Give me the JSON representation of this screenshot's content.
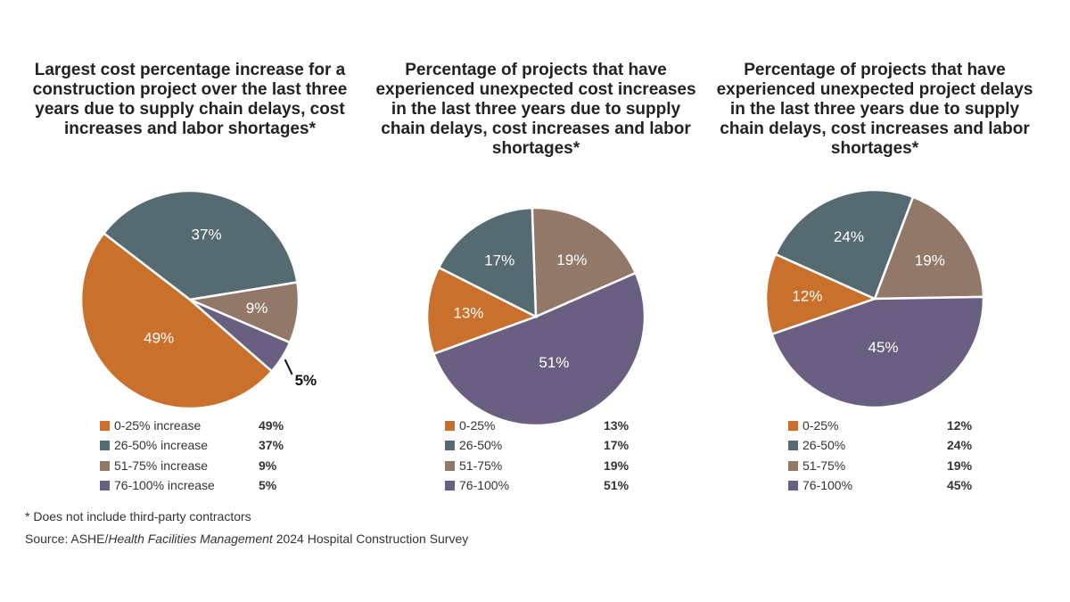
{
  "colors": {
    "0-25": "#C8702C",
    "26-50": "#566A72",
    "51-75": "#917869",
    "76-100": "#6A5F80"
  },
  "chart_data": [
    {
      "type": "pie",
      "title": "Largest cost percentage increase for a construction project over the last three years due to supply chain delays, cost increases and labor shortages*",
      "categories": [
        "0-25% increase",
        "26-50% increase",
        "51-75% increase",
        "76-100% increase"
      ],
      "values": [
        49,
        37,
        9,
        5
      ],
      "data_labels": [
        "49%",
        "37%",
        "9%",
        "5%"
      ],
      "legend": "bottom"
    },
    {
      "type": "pie",
      "title": "Percentage of projects that have experienced unexpected cost increases in the last three years due to supply chain delays, cost increases and labor shortages*",
      "categories": [
        "0-25%",
        "26-50%",
        "51-75%",
        "76-100%"
      ],
      "values": [
        13,
        17,
        19,
        51
      ],
      "data_labels": [
        "13%",
        "17%",
        "19%",
        "51%"
      ],
      "legend": "bottom"
    },
    {
      "type": "pie",
      "title": "Percentage of projects that have experienced unexpected project delays in the last three years due to supply chain delays, cost increases and labor shortages*",
      "categories": [
        "0-25%",
        "26-50%",
        "51-75%",
        "76-100%"
      ],
      "values": [
        12,
        24,
        19,
        45
      ],
      "data_labels": [
        "12%",
        "24%",
        "19%",
        "45%"
      ],
      "legend": "bottom"
    }
  ],
  "footnote": "* Does not include third-party contractors",
  "source_prefix": "Source: ASHE/",
  "source_italic": "Health Facilities Management",
  "source_suffix": " 2024 Hospital Construction Survey"
}
